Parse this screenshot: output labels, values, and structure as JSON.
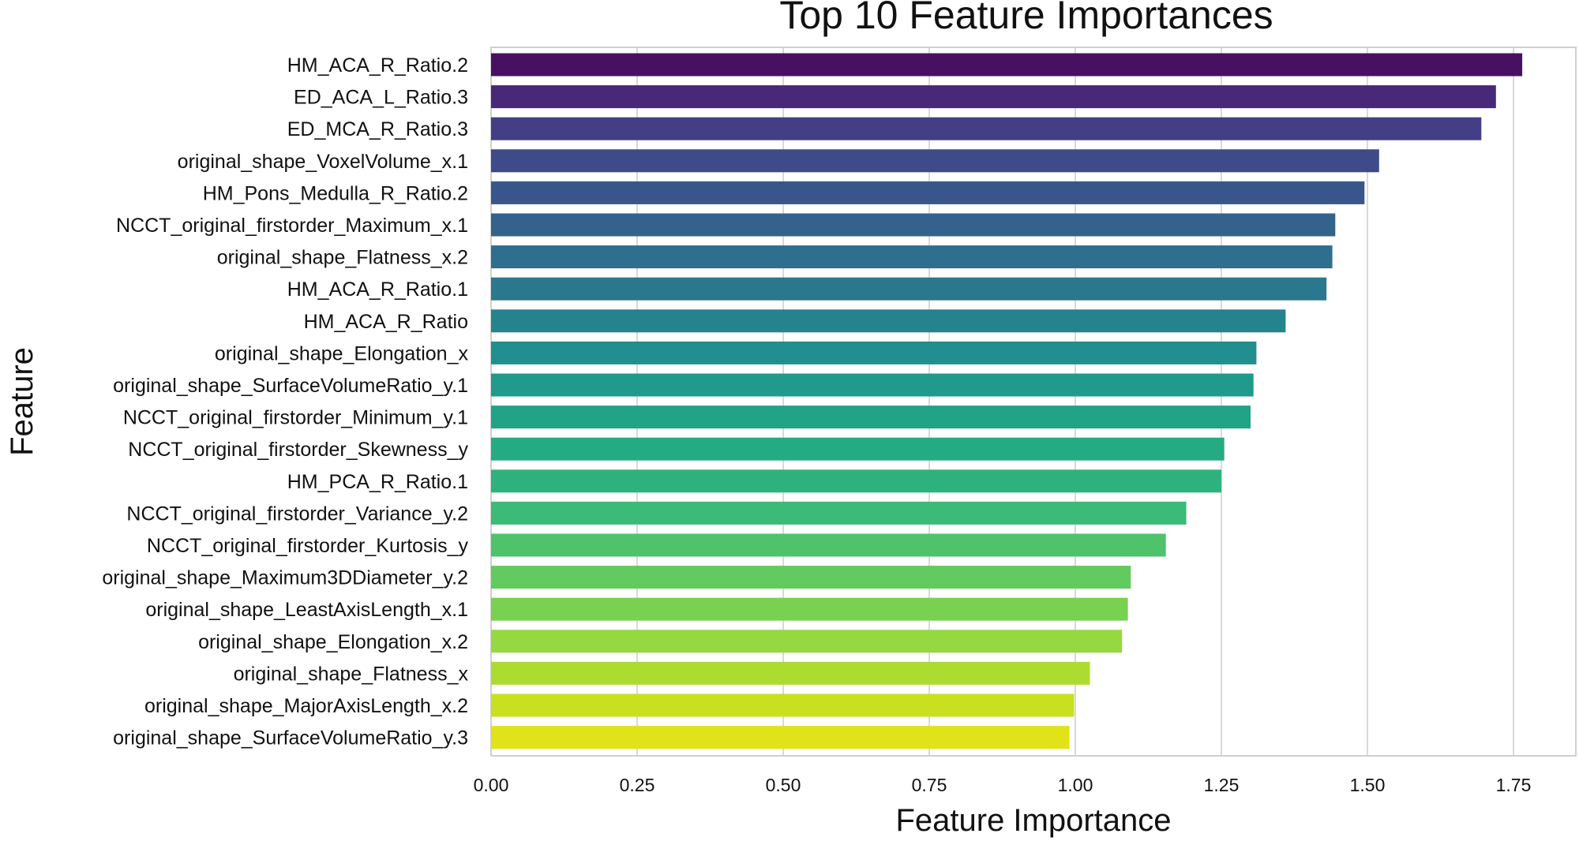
{
  "chart_data": {
    "type": "bar",
    "orientation": "horizontal",
    "title": "Top 10 Feature Importances",
    "xlabel": "Feature Importance",
    "ylabel": "Feature",
    "xlim": [
      0,
      1.85
    ],
    "xticks": [
      "0.00",
      "0.25",
      "0.50",
      "0.75",
      "1.00",
      "1.25",
      "1.50",
      "1.75"
    ],
    "grid": true,
    "categories": [
      "HM_ACA_R_Ratio.2",
      "ED_ACA_L_Ratio.3",
      "ED_MCA_R_Ratio.3",
      "original_shape_VoxelVolume_x.1",
      "HM_Pons_Medulla_R_Ratio.2",
      "NCCT_original_firstorder_Maximum_x.1",
      "original_shape_Flatness_x.2",
      "HM_ACA_R_Ratio.1",
      "HM_ACA_R_Ratio",
      "original_shape_Elongation_x",
      "original_shape_SurfaceVolumeRatio_y.1",
      "NCCT_original_firstorder_Minimum_y.1",
      "NCCT_original_firstorder_Skewness_y",
      "HM_PCA_R_Ratio.1",
      "NCCT_original_firstorder_Variance_y.2",
      "NCCT_original_firstorder_Kurtosis_y",
      "original_shape_Maximum3DDiameter_y.2",
      "original_shape_LeastAxisLength_x.1",
      "original_shape_Elongation_x.2",
      "original_shape_Flatness_x",
      "original_shape_MajorAxisLength_x.2",
      "original_shape_SurfaceVolumeRatio_y.3"
    ],
    "values": [
      1.765,
      1.72,
      1.695,
      1.52,
      1.495,
      1.445,
      1.44,
      1.43,
      1.36,
      1.31,
      1.305,
      1.3,
      1.255,
      1.25,
      1.19,
      1.155,
      1.095,
      1.09,
      1.08,
      1.025,
      0.998,
      0.99
    ],
    "colors": [
      "#471063",
      "#482878",
      "#433e85",
      "#3e4a89",
      "#39568c",
      "#33638d",
      "#2e6e8e",
      "#2a788e",
      "#25838e",
      "#218f8d",
      "#1e9b8a",
      "#20a386",
      "#25ab82",
      "#2db27d",
      "#3bbb75",
      "#4ec36b",
      "#62cb5f",
      "#79d151",
      "#95d840",
      "#addc30",
      "#c8e020",
      "#dfe318"
    ]
  }
}
